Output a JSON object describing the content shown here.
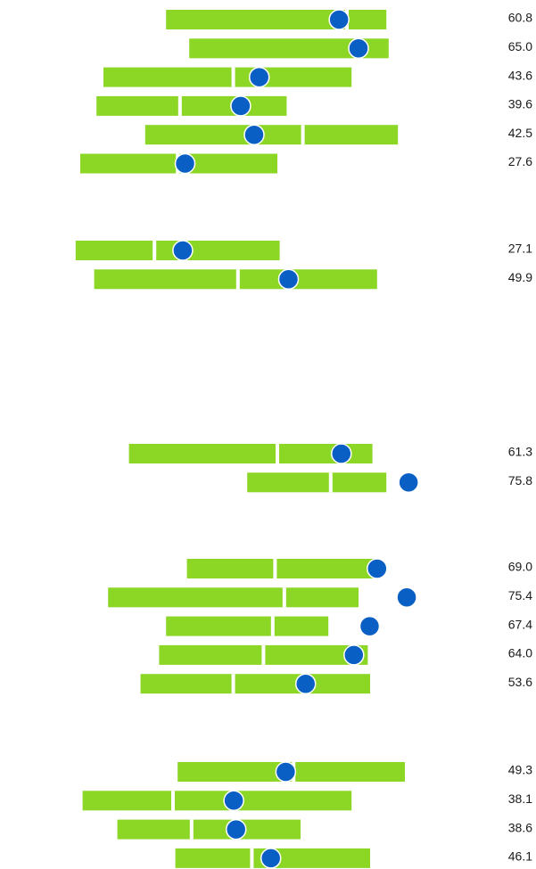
{
  "chart_data": {
    "type": "range-bar-dot",
    "title": "",
    "xlabel": "",
    "ylabel": "",
    "grid": false,
    "colors": {
      "bar": "#8cd626",
      "dot": "#0a5fc4",
      "dot_stroke": "#ffffff",
      "divider": "#ffffff"
    },
    "groups": [
      {
        "rows": [
          {
            "low": 23.5,
            "high": 71.0,
            "split": 62.5,
            "value": 60.8
          },
          {
            "low": 28.5,
            "high": 71.5,
            "split": 64.5,
            "value": 65.0
          },
          {
            "low": 10.0,
            "high": 63.5,
            "split": 38.0,
            "value": 43.6
          },
          {
            "low": 8.5,
            "high": 49.5,
            "split": 26.5,
            "value": 39.6
          },
          {
            "low": 19.0,
            "high": 73.5,
            "split": 53.0,
            "value": 42.5
          },
          {
            "low": 5.0,
            "high": 47.5,
            "split": 26.0,
            "value": 27.6
          }
        ]
      },
      {
        "rows": [
          {
            "low": 4.0,
            "high": 48.0,
            "split": 21.0,
            "value": 27.1
          },
          {
            "low": 8.0,
            "high": 69.0,
            "split": 39.0,
            "value": 49.9
          }
        ]
      },
      {
        "rows": [
          {
            "low": 15.5,
            "high": 68.0,
            "split": 47.5,
            "value": 61.3
          },
          {
            "low": 41.0,
            "high": 71.0,
            "split": 59.0,
            "value": 75.8
          }
        ]
      },
      {
        "rows": [
          {
            "low": 28.0,
            "high": 69.0,
            "split": 47.0,
            "value": 69.0
          },
          {
            "low": 11.0,
            "high": 65.0,
            "split": 49.0,
            "value": 75.4
          },
          {
            "low": 23.5,
            "high": 58.5,
            "split": 46.5,
            "value": 67.4
          },
          {
            "low": 22.0,
            "high": 67.0,
            "split": 44.5,
            "value": 64.0
          },
          {
            "low": 18.0,
            "high": 67.5,
            "split": 38.0,
            "value": 53.6
          }
        ]
      },
      {
        "rows": [
          {
            "low": 26.0,
            "high": 75.0,
            "split": 51.0,
            "value": 49.3
          },
          {
            "low": 5.5,
            "high": 63.5,
            "split": 25.0,
            "value": 38.1
          },
          {
            "low": 13.0,
            "high": 52.5,
            "split": 29.0,
            "value": 38.6
          },
          {
            "low": 25.5,
            "high": 67.5,
            "split": 42.0,
            "value": 46.1
          }
        ]
      }
    ]
  }
}
